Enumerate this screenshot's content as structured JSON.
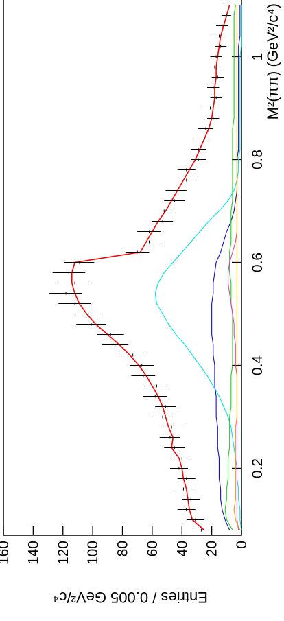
{
  "chart_data": {
    "type": "line",
    "x_label": "M²(ππ) (GeV²/c⁴)",
    "y_label": "Entries / 0.005 GeV²/c⁴",
    "xlim": [
      0.07,
      1.11
    ],
    "ylim": [
      0,
      160
    ],
    "xticks": [
      0.2,
      0.4,
      0.6,
      0.8,
      1
    ],
    "yticks": [
      0,
      20,
      40,
      60,
      80,
      100,
      120,
      140,
      160
    ],
    "x": [
      0.08,
      0.1,
      0.12,
      0.14,
      0.16,
      0.18,
      0.2,
      0.22,
      0.24,
      0.26,
      0.28,
      0.3,
      0.32,
      0.34,
      0.36,
      0.38,
      0.4,
      0.42,
      0.44,
      0.46,
      0.48,
      0.5,
      0.52,
      0.54,
      0.56,
      0.58,
      0.6,
      0.62,
      0.64,
      0.66,
      0.68,
      0.7,
      0.72,
      0.74,
      0.76,
      0.78,
      0.8,
      0.82,
      0.84,
      0.86,
      0.88,
      0.9,
      0.92,
      0.94,
      0.96,
      0.98,
      1.0,
      1.02,
      1.04,
      1.06,
      1.08,
      1.1
    ],
    "data": {
      "color": "#000000",
      "values": [
        27,
        31,
        37,
        34,
        39,
        37,
        42,
        40,
        45,
        48,
        47,
        53,
        51,
        58,
        57,
        66,
        67,
        73,
        85,
        88,
        101,
        103,
        112,
        118,
        112,
        116,
        109,
        70,
        62,
        62,
        53,
        52,
        45,
        44,
        37,
        37,
        29,
        29,
        25,
        24,
        19,
        21,
        17,
        19,
        16,
        18,
        17,
        14,
        15,
        13,
        10,
        9
      ],
      "errors": [
        5,
        6,
        6,
        6,
        6,
        6,
        6,
        6,
        7,
        7,
        7,
        7,
        7,
        8,
        8,
        8,
        8,
        9,
        9,
        9,
        10,
        10,
        11,
        11,
        11,
        11,
        10,
        8,
        8,
        8,
        7,
        7,
        7,
        7,
        6,
        6,
        5,
        5,
        5,
        5,
        4,
        5,
        4,
        4,
        4,
        4,
        4,
        4,
        4,
        4,
        3,
        3
      ]
    },
    "series": [
      {
        "color": "#00e5e5",
        "values": [
          0,
          1,
          1,
          2,
          2,
          3,
          3,
          4,
          5,
          6,
          7,
          9,
          12,
          15,
          19,
          23,
          28,
          33,
          38,
          44,
          49,
          53,
          57,
          58,
          56,
          52,
          46,
          40,
          34,
          28,
          22,
          15,
          9,
          5,
          3,
          2,
          2,
          1,
          1,
          1,
          1,
          1,
          1,
          1,
          1,
          1,
          1,
          0,
          0,
          0,
          0,
          0
        ]
      },
      {
        "color": "#1010c8",
        "values": [
          8,
          11,
          13,
          14,
          14,
          15,
          15,
          15,
          16,
          16,
          16,
          17,
          17,
          17,
          18,
          18,
          18,
          19,
          19,
          20,
          20,
          20,
          20,
          19,
          19,
          18,
          17,
          14,
          12,
          10,
          7,
          5,
          4,
          3,
          3,
          3,
          3,
          2,
          2,
          2,
          2,
          2,
          2,
          2,
          2,
          2,
          2,
          2,
          1,
          1,
          1,
          1
        ]
      },
      {
        "color": "#22cc22",
        "values": [
          6,
          10,
          11,
          10,
          10,
          9,
          9,
          9,
          8,
          8,
          8,
          8,
          7,
          7,
          7,
          7,
          6,
          6,
          6,
          6,
          6,
          6,
          7,
          7,
          7,
          8,
          8,
          8,
          7,
          7,
          7,
          7,
          6,
          6,
          6,
          6,
          6,
          6,
          6,
          6,
          5,
          5,
          5,
          5,
          5,
          5,
          5,
          5,
          5,
          5,
          5,
          4
        ]
      },
      {
        "color": "#e040c0",
        "values": [
          2,
          3,
          3,
          3,
          3,
          3,
          3,
          3,
          3,
          3,
          3,
          3,
          3,
          3,
          3,
          3,
          4,
          4,
          4,
          5,
          5,
          6,
          7,
          8,
          9,
          9,
          8,
          6,
          4,
          3,
          3,
          3,
          3,
          3,
          3,
          3,
          3,
          3,
          3,
          3,
          3,
          3,
          3,
          3,
          3,
          3,
          3,
          3,
          3,
          3,
          3,
          3
        ]
      },
      {
        "color": "#e0a000",
        "values": [
          1,
          4,
          5,
          4,
          4,
          4,
          4,
          4,
          4,
          4,
          4,
          3,
          3,
          3,
          3,
          3,
          3,
          3,
          3,
          3,
          3,
          3,
          3,
          3,
          3,
          3,
          3,
          3,
          3,
          3,
          3,
          3,
          3,
          3,
          3,
          3,
          3,
          3,
          3,
          3,
          3,
          3,
          3,
          3,
          3,
          3,
          3,
          3,
          3,
          3,
          3,
          3
        ]
      },
      {
        "color": "#ff0000",
        "values": [
          25,
          33,
          35,
          36,
          37,
          39,
          40,
          42,
          47,
          46,
          49,
          51,
          53,
          56,
          60,
          64,
          69,
          75,
          82,
          90,
          98,
          104,
          109,
          112,
          114,
          114,
          112,
          68,
          64,
          60,
          56,
          51,
          47,
          43,
          39,
          35,
          31,
          28,
          25,
          22,
          20,
          19,
          18,
          18,
          17,
          17,
          16,
          15,
          14,
          12,
          10,
          8
        ]
      }
    ]
  }
}
